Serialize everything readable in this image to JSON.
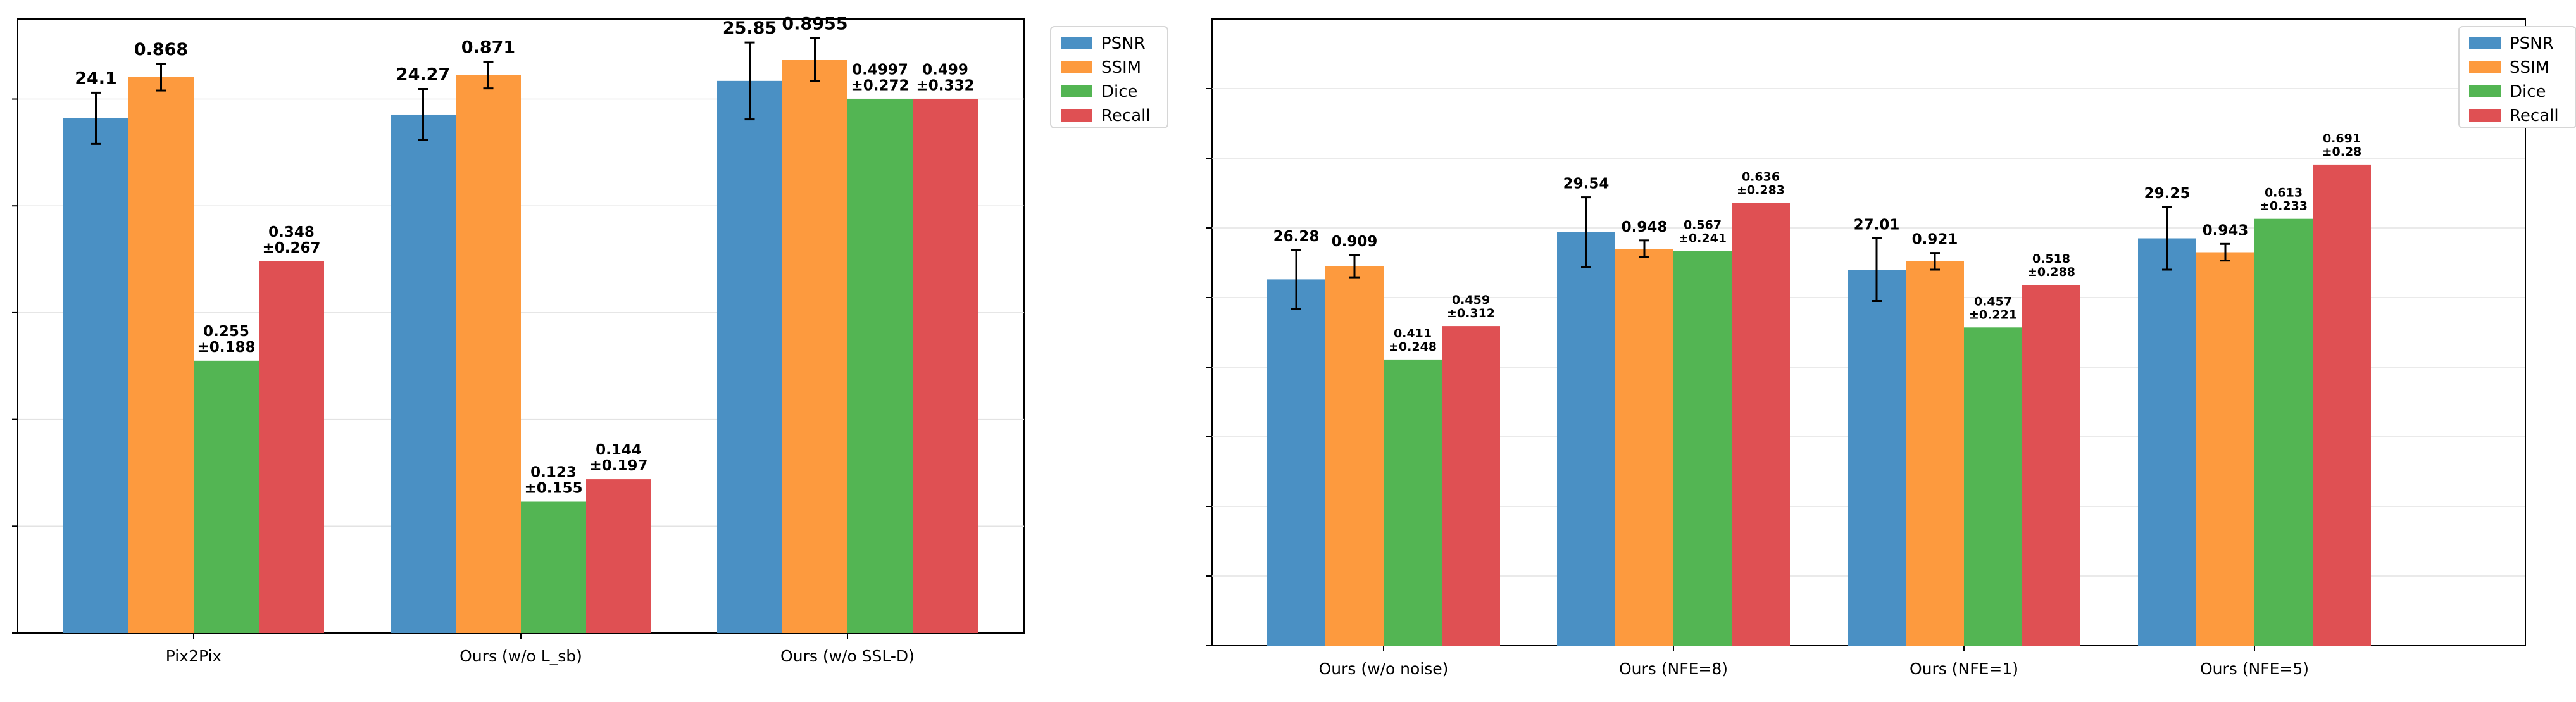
{
  "series_colors": {
    "PSNR": "#4a90c4",
    "SSIM": "#fd9a3e",
    "Dice": "#53b553",
    "Recall": "#df5053"
  },
  "chart_data": [
    {
      "type": "bar",
      "title": "",
      "xlabel": "",
      "ylabel": "",
      "grid": true,
      "legend": "outside top-right",
      "ylim": [
        0,
        1.15
      ],
      "categories": [
        "Pix2Pix",
        "Ours (w/o L_sb)",
        "Ours (w/o SSL-D)"
      ],
      "series": [
        {
          "name": "PSNR",
          "values": [
            0.964,
            0.971,
            1.034
          ],
          "error": [
            0.048,
            0.048,
            0.072
          ],
          "labels": [
            "24.1",
            "24.27",
            "25.85"
          ]
        },
        {
          "name": "SSIM",
          "values": [
            1.041,
            1.045,
            1.074
          ],
          "error": [
            0.025,
            0.025,
            0.04
          ],
          "labels": [
            "0.868",
            "0.871",
            "0.8955"
          ]
        },
        {
          "name": "Dice",
          "values": [
            0.51,
            0.246,
            1.0
          ],
          "error": [
            0,
            0,
            0
          ],
          "labels": [
            "0.255\n±0.188",
            "0.123\n±0.155",
            "0.4997\n±0.272"
          ]
        },
        {
          "name": "Recall",
          "values": [
            0.696,
            0.288,
            1.0
          ],
          "error": [
            0,
            0,
            0
          ],
          "labels": [
            "0.348\n±0.267",
            "0.144\n±0.197",
            "0.499\n±0.332"
          ]
        }
      ]
    },
    {
      "type": "bar",
      "title": "",
      "xlabel": "",
      "ylabel": "",
      "grid": true,
      "legend": "outside top-right",
      "ylim": [
        0,
        0.9
      ],
      "categories": [
        "Ours (w/o noise)",
        "Ours (NFE=8)",
        "Ours (NFE=1)",
        "Ours (NFE=5)"
      ],
      "series": [
        {
          "name": "PSNR",
          "values": [
            0.526,
            0.594,
            0.54,
            0.585
          ],
          "error": [
            0.042,
            0.05,
            0.045,
            0.045
          ],
          "labels": [
            "26.28",
            "29.54",
            "27.01",
            "29.25"
          ]
        },
        {
          "name": "SSIM",
          "values": [
            0.545,
            0.57,
            0.552,
            0.565
          ],
          "error": [
            0.016,
            0.012,
            0.012,
            0.012
          ],
          "labels": [
            "0.909",
            "0.948",
            "0.921",
            "0.943"
          ]
        },
        {
          "name": "Dice",
          "values": [
            0.411,
            0.567,
            0.457,
            0.613
          ],
          "error": [
            0,
            0,
            0,
            0
          ],
          "labels": [
            "0.411\n±0.248",
            "0.567\n±0.241",
            "0.457\n±0.221",
            "0.613\n±0.233"
          ]
        },
        {
          "name": "Recall",
          "values": [
            0.459,
            0.636,
            0.518,
            0.691
          ],
          "error": [
            0,
            0,
            0,
            0
          ],
          "labels": [
            "0.459\n±0.312",
            "0.636\n±0.283",
            "0.518\n±0.288",
            "0.691\n±0.28"
          ]
        }
      ]
    }
  ]
}
